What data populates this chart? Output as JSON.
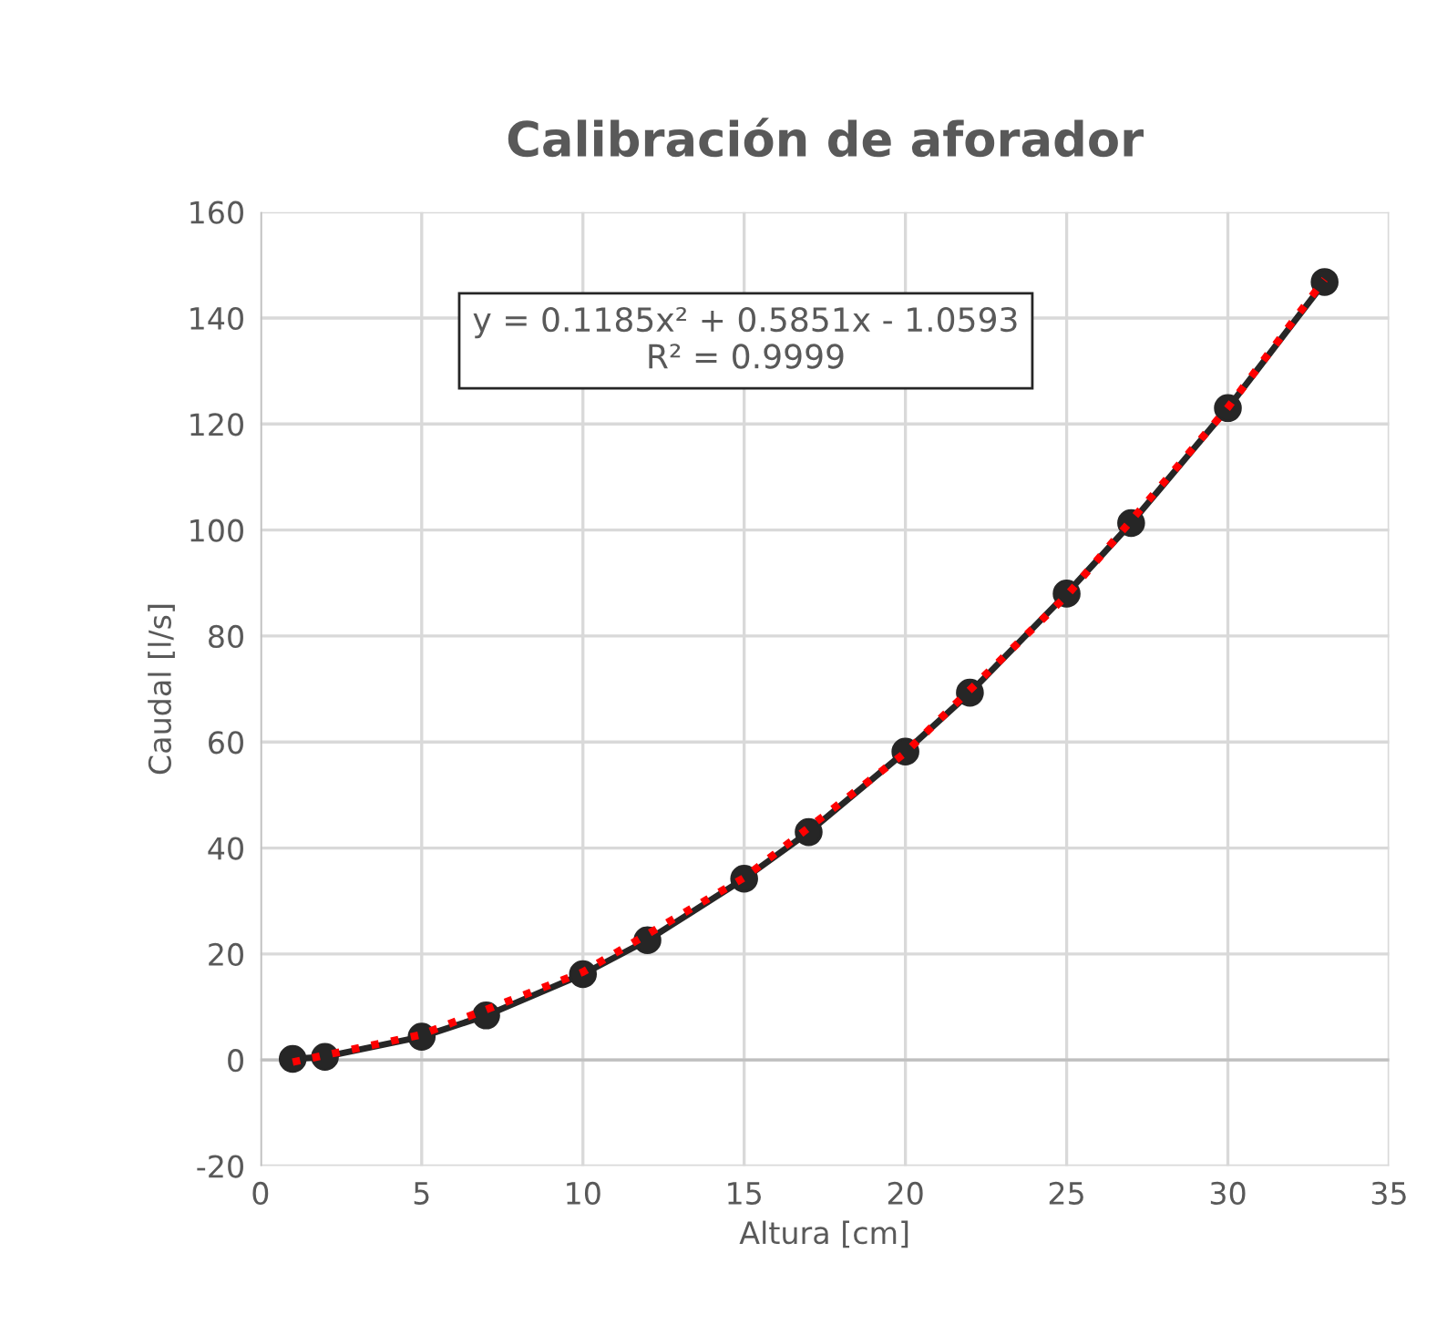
{
  "chart_data": {
    "type": "line",
    "title": "Calibración de aforador",
    "xlabel": "Altura [cm]",
    "ylabel": "Caudal [l/s]",
    "xlim": [
      0,
      35
    ],
    "xticks": [
      0,
      5,
      10,
      15,
      20,
      25,
      30,
      35
    ],
    "ylim": [
      -20,
      160
    ],
    "yticks": [
      -20,
      0,
      20,
      40,
      60,
      80,
      100,
      120,
      140,
      160
    ],
    "grid": true,
    "annotations": [
      "y = 0.1185x² + 0.5851x - 1.0593\nR² = 0.9999"
    ],
    "series": [
      {
        "color": "#262626",
        "marker": "circle",
        "line_style": "solid",
        "x": [
          1,
          2,
          5,
          7,
          10,
          12,
          15,
          17,
          20,
          22,
          25,
          27,
          30,
          33
        ],
        "values": [
          0.2,
          0.6,
          4.4,
          8.4,
          16.2,
          22.6,
          34.2,
          43.0,
          58.2,
          69.3,
          88.0,
          101.3,
          123.0,
          146.8
        ]
      },
      {
        "color": "#ff0000",
        "marker": "none",
        "line_style": "dotted",
        "x": [
          1,
          5,
          10,
          15,
          20,
          25,
          30,
          33
        ],
        "values": [
          -0.4,
          4.8,
          16.6,
          34.4,
          58.0,
          87.6,
          123.1,
          147.3
        ]
      }
    ]
  }
}
